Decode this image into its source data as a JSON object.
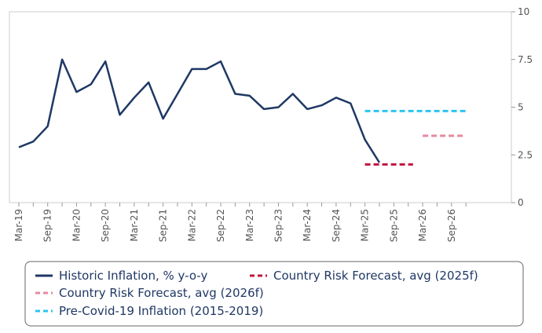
{
  "chart_data": {
    "type": "line",
    "title": "",
    "xlabel": "",
    "ylabel": "",
    "ylim": [
      0,
      10
    ],
    "yticks": [
      0,
      2.5,
      5,
      7.5,
      10
    ],
    "ytick_labels": [
      "0",
      "2.5",
      "5",
      "7.5",
      "10"
    ],
    "x_tick_labels": [
      "Mar-19",
      "Sep-19",
      "Mar-20",
      "Sep-20",
      "Mar-21",
      "Sep-21",
      "Mar-22",
      "Sep-22",
      "Mar-23",
      "Sep-23",
      "Mar-24",
      "Sep-24",
      "Mar-25",
      "Sep-25",
      "Mar-26",
      "Sep-26"
    ],
    "x_range_months": [
      0,
      93
    ],
    "series": [
      {
        "name": "Historic Inflation, % y-o-y",
        "style": "solid",
        "color": "#1f3864",
        "x_months": [
          0,
          3,
          6,
          9,
          12,
          15,
          18,
          21,
          24,
          27,
          30,
          33,
          36,
          39,
          42,
          45,
          48,
          51,
          54,
          57,
          60,
          63,
          66,
          69,
          72,
          75,
          78
        ],
        "values": [
          2.9,
          3.2,
          4.0,
          7.5,
          5.8,
          6.2,
          7.4,
          4.6,
          5.5,
          6.3,
          4.4,
          5.7,
          7.0,
          7.0,
          7.4,
          5.7,
          5.6,
          4.9,
          5.0,
          5.7,
          4.9,
          5.1,
          5.5,
          5.2,
          3.3,
          2.1,
          null
        ]
      },
      {
        "name": "Country Risk Forecast, avg (2025f)",
        "style": "dashed",
        "color": "#c0143c",
        "x_months": [
          72,
          82
        ],
        "values": [
          2.0,
          2.0
        ]
      },
      {
        "name": "Country Risk Forecast, avg (2026f)",
        "style": "dashed",
        "color": "#e58aa0",
        "x_months": [
          84,
          93
        ],
        "values": [
          3.5,
          3.5
        ]
      },
      {
        "name": "Pre-Covid-19 Inflation (2015-2019)",
        "style": "dashed",
        "color": "#2ec4ef",
        "x_months": [
          72,
          93
        ],
        "values": [
          4.8,
          4.8
        ]
      }
    ],
    "legend": {
      "placement": "bottom",
      "rows": [
        [
          "Historic Inflation, % y-o-y",
          "Country Risk Forecast, avg (2025f)"
        ],
        [
          "Country Risk Forecast, avg (2026f)"
        ],
        [
          "Pre-Covid-19 Inflation (2015-2019)"
        ]
      ]
    }
  }
}
